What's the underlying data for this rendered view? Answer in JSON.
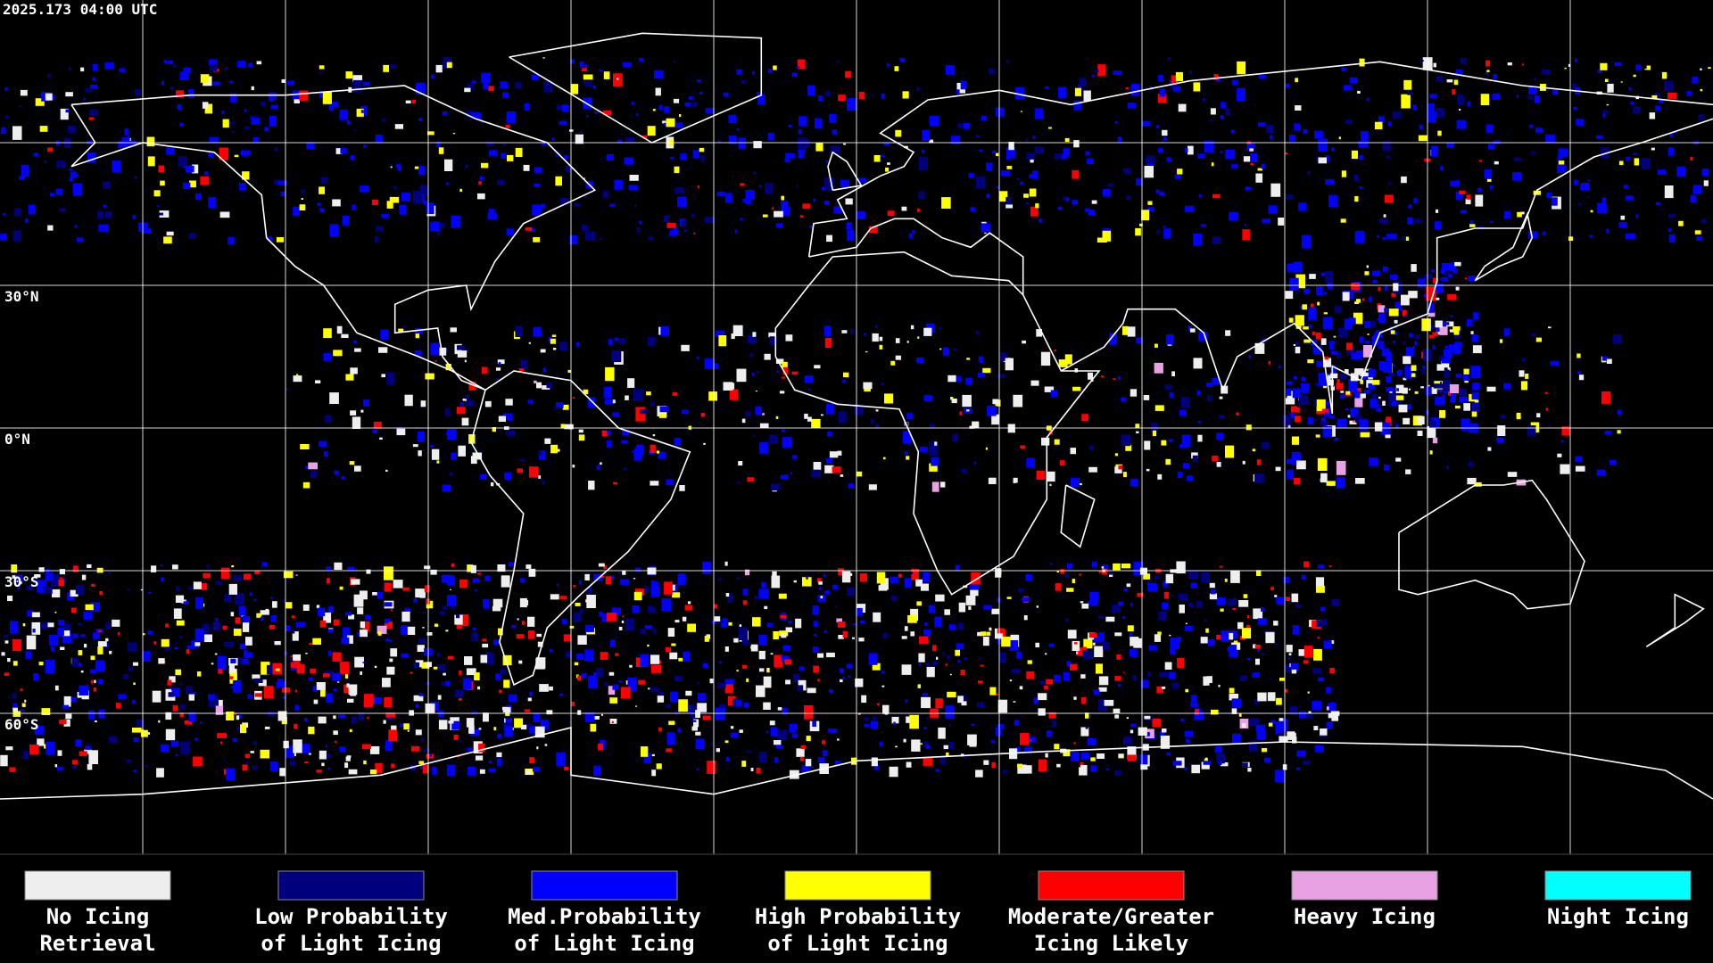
{
  "header": {
    "timestamp": "2025.173 04:00 UTC"
  },
  "map": {
    "latitude_labels": [
      "30°N",
      "0°N",
      "30°S",
      "60°S"
    ]
  },
  "legend": {
    "items": [
      {
        "label": [
          "No Icing",
          "Retrieval"
        ],
        "color": "#eeeeee"
      },
      {
        "label": [
          "Low Probability",
          "of Light Icing"
        ],
        "color": "#00007f"
      },
      {
        "label": [
          "Med.Probability",
          "of Light Icing"
        ],
        "color": "#0000ff"
      },
      {
        "label": [
          "High Probability",
          "of Light Icing"
        ],
        "color": "#ffff00"
      },
      {
        "label": [
          "Moderate/Greater",
          "Icing Likely"
        ],
        "color": "#ff0000"
      },
      {
        "label": [
          "Heavy Icing",
          ""
        ],
        "color": "#e8a2e4"
      },
      {
        "label": [
          "Night Icing",
          ""
        ],
        "color": "#00ffff"
      }
    ]
  }
}
